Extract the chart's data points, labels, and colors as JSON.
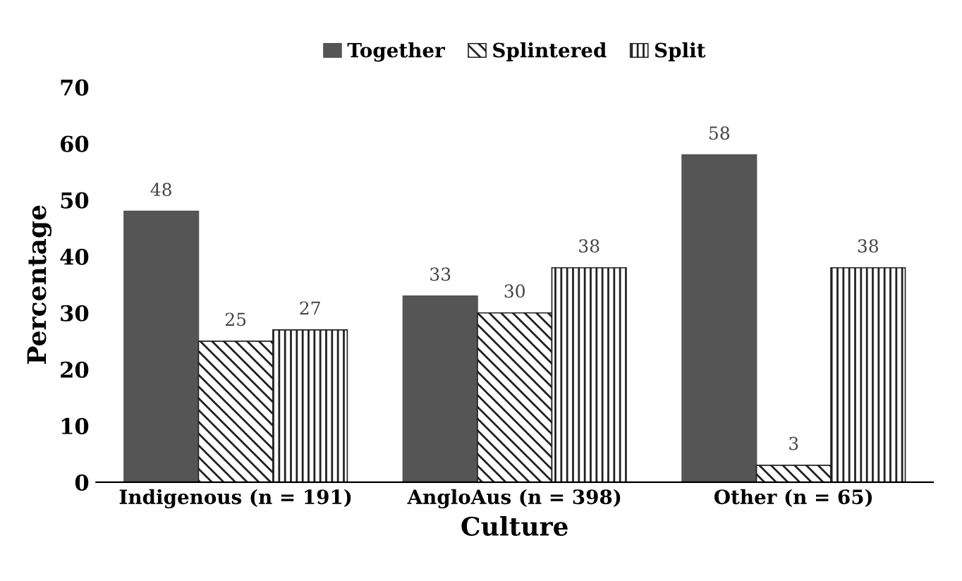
{
  "chart_data": {
    "type": "bar",
    "xlabel": "Culture",
    "ylabel": "Percentage",
    "categories": [
      "Indigenous (n = 191)",
      "AngloAus (n = 398)",
      "Other (n = 65)"
    ],
    "series": [
      {
        "name": "Together",
        "color": "#555555",
        "values": [
          48,
          33,
          58
        ]
      },
      {
        "name": "Splintered",
        "color": "#222222",
        "values": [
          25,
          30,
          3
        ]
      },
      {
        "name": "Split",
        "color": "#222222",
        "values": [
          27,
          38,
          38
        ]
      }
    ],
    "ylim": [
      0,
      70
    ],
    "yticks": [
      0,
      10,
      20,
      30,
      40,
      50,
      60,
      70
    ],
    "grid": false,
    "legend": "top",
    "data_labels": true
  }
}
